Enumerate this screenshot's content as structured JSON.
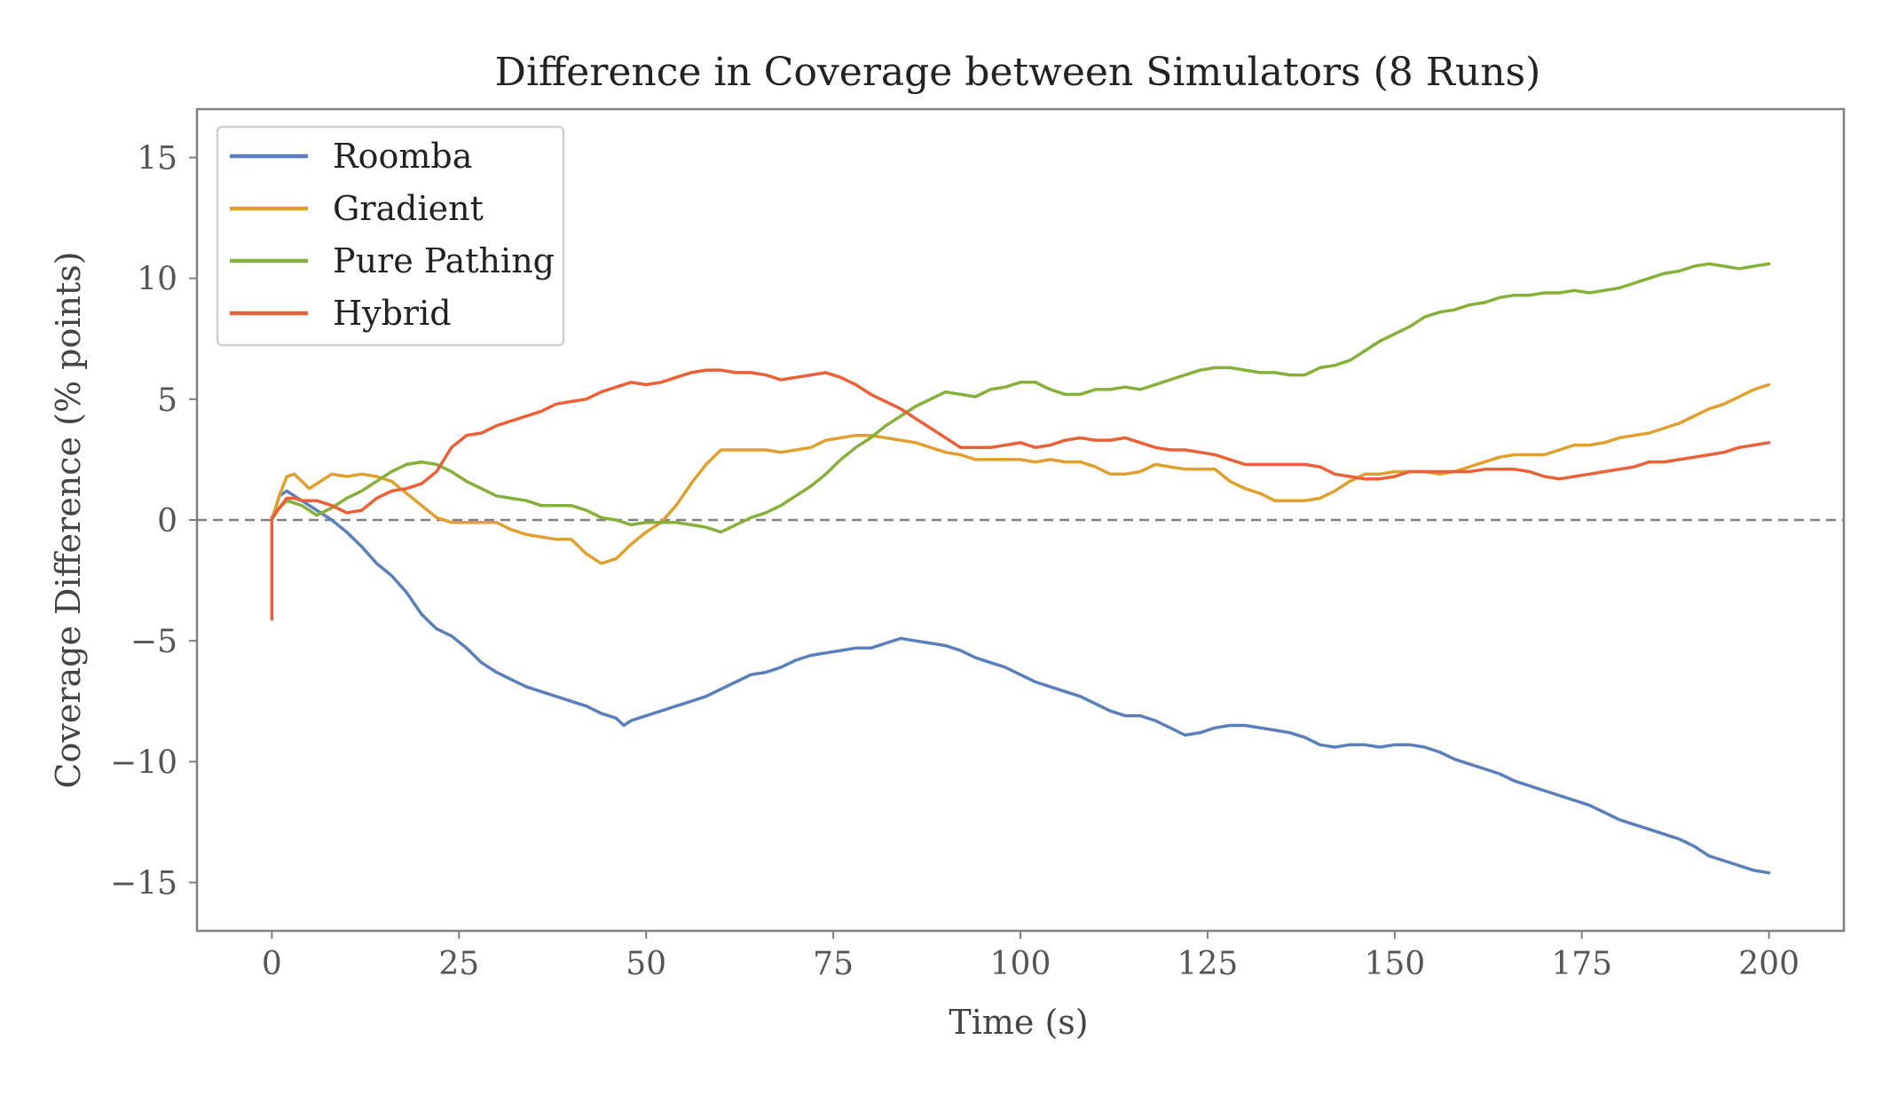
{
  "chart_data": {
    "type": "line",
    "title": "Difference in Coverage between Simulators (8 Runs)",
    "xlabel": "Time (s)",
    "ylabel": "Coverage Difference (% points)",
    "xlim": [
      -10,
      210
    ],
    "ylim": [
      -17,
      17
    ],
    "xticks": [
      0,
      25,
      50,
      75,
      100,
      125,
      150,
      175,
      200
    ],
    "xtick_labels": [
      "0",
      "25",
      "50",
      "75",
      "100",
      "125",
      "150",
      "175",
      "200"
    ],
    "yticks": [
      15,
      10,
      5,
      0,
      -5,
      -10,
      -15
    ],
    "ytick_labels": [
      "15",
      "10",
      "5",
      "0",
      "−5",
      "−10",
      "−15"
    ],
    "grid": false,
    "legend_position": "upper-left",
    "reference_line": {
      "y": 0,
      "style": "dashed",
      "color": "#808080"
    },
    "series": [
      {
        "name": "Roomba",
        "color": "#5b7fbb",
        "x": [
          0,
          1,
          2,
          4,
          6,
          8,
          10,
          12,
          14,
          16,
          18,
          20,
          22,
          24,
          26,
          28,
          30,
          32,
          34,
          36,
          38,
          40,
          42,
          44,
          46,
          47,
          48,
          50,
          52,
          54,
          56,
          58,
          60,
          62,
          64,
          66,
          68,
          70,
          72,
          74,
          76,
          78,
          80,
          82,
          84,
          86,
          88,
          90,
          92,
          94,
          96,
          98,
          100,
          102,
          104,
          106,
          108,
          110,
          112,
          114,
          116,
          118,
          120,
          122,
          124,
          126,
          128,
          130,
          132,
          134,
          136,
          138,
          140,
          142,
          144,
          146,
          148,
          150,
          152,
          154,
          156,
          158,
          160,
          162,
          164,
          166,
          168,
          170,
          172,
          174,
          176,
          178,
          180,
          182,
          184,
          186,
          188,
          190,
          192,
          194,
          196,
          198,
          200
        ],
        "y": [
          0,
          1.0,
          1.2,
          0.8,
          0.4,
          0.0,
          -0.5,
          -1.1,
          -1.8,
          -2.3,
          -3.0,
          -3.9,
          -4.5,
          -4.8,
          -5.3,
          -5.9,
          -6.3,
          -6.6,
          -6.9,
          -7.1,
          -7.3,
          -7.5,
          -7.7,
          -8.0,
          -8.2,
          -8.5,
          -8.3,
          -8.1,
          -7.9,
          -7.7,
          -7.5,
          -7.3,
          -7.0,
          -6.7,
          -6.4,
          -6.3,
          -6.1,
          -5.8,
          -5.6,
          -5.5,
          -5.4,
          -5.3,
          -5.3,
          -5.1,
          -4.9,
          -5.0,
          -5.1,
          -5.2,
          -5.4,
          -5.7,
          -5.9,
          -6.1,
          -6.4,
          -6.7,
          -6.9,
          -7.1,
          -7.3,
          -7.6,
          -7.9,
          -8.1,
          -8.1,
          -8.3,
          -8.6,
          -8.9,
          -8.8,
          -8.6,
          -8.5,
          -8.5,
          -8.6,
          -8.7,
          -8.8,
          -9.0,
          -9.3,
          -9.4,
          -9.3,
          -9.3,
          -9.4,
          -9.3,
          -9.3,
          -9.4,
          -9.6,
          -9.9,
          -10.1,
          -10.3,
          -10.5,
          -10.8,
          -11.0,
          -11.2,
          -11.4,
          -11.6,
          -11.8,
          -12.1,
          -12.4,
          -12.6,
          -12.8,
          -13.0,
          -13.2,
          -13.5,
          -13.9,
          -14.1,
          -14.3,
          -14.5,
          -14.6
        ]
      },
      {
        "name": "Gradient",
        "color": "#e1a02e",
        "x": [
          0,
          1,
          2,
          3,
          4,
          5,
          6,
          8,
          10,
          12,
          14,
          16,
          18,
          20,
          22,
          24,
          26,
          28,
          30,
          32,
          34,
          36,
          38,
          40,
          42,
          44,
          46,
          48,
          50,
          52,
          54,
          56,
          58,
          60,
          62,
          64,
          66,
          68,
          70,
          72,
          74,
          76,
          78,
          80,
          82,
          84,
          86,
          88,
          90,
          92,
          94,
          96,
          98,
          100,
          102,
          104,
          106,
          108,
          110,
          112,
          114,
          116,
          118,
          120,
          122,
          124,
          126,
          128,
          130,
          132,
          134,
          136,
          138,
          140,
          142,
          144,
          146,
          148,
          150,
          152,
          154,
          156,
          158,
          160,
          162,
          164,
          166,
          168,
          170,
          172,
          174,
          176,
          178,
          180,
          182,
          184,
          186,
          188,
          190,
          192,
          194,
          196,
          198,
          200
        ],
        "y": [
          0,
          1.0,
          1.8,
          1.9,
          1.6,
          1.3,
          1.5,
          1.9,
          1.8,
          1.9,
          1.8,
          1.6,
          1.1,
          0.6,
          0.1,
          -0.1,
          -0.1,
          -0.1,
          -0.1,
          -0.4,
          -0.6,
          -0.7,
          -0.8,
          -0.8,
          -1.4,
          -1.8,
          -1.6,
          -1.0,
          -0.5,
          -0.1,
          0.6,
          1.5,
          2.3,
          2.9,
          2.9,
          2.9,
          2.9,
          2.8,
          2.9,
          3.0,
          3.3,
          3.4,
          3.5,
          3.5,
          3.4,
          3.3,
          3.2,
          3.0,
          2.8,
          2.7,
          2.5,
          2.5,
          2.5,
          2.5,
          2.4,
          2.5,
          2.4,
          2.4,
          2.2,
          1.9,
          1.9,
          2.0,
          2.3,
          2.2,
          2.1,
          2.1,
          2.1,
          1.6,
          1.3,
          1.1,
          0.8,
          0.8,
          0.8,
          0.9,
          1.2,
          1.6,
          1.9,
          1.9,
          2.0,
          2.0,
          2.0,
          1.9,
          2.0,
          2.2,
          2.4,
          2.6,
          2.7,
          2.7,
          2.7,
          2.9,
          3.1,
          3.1,
          3.2,
          3.4,
          3.5,
          3.6,
          3.8,
          4.0,
          4.3,
          4.6,
          4.8,
          5.1,
          5.4,
          5.6
        ]
      },
      {
        "name": "Pure Pathing",
        "color": "#86b03a",
        "x": [
          0,
          1,
          2,
          4,
          6,
          8,
          10,
          12,
          14,
          16,
          18,
          20,
          22,
          24,
          26,
          28,
          30,
          32,
          34,
          36,
          38,
          40,
          42,
          44,
          46,
          48,
          50,
          52,
          54,
          56,
          58,
          60,
          62,
          64,
          66,
          68,
          70,
          72,
          74,
          76,
          78,
          80,
          82,
          84,
          86,
          88,
          90,
          92,
          94,
          96,
          98,
          100,
          102,
          104,
          106,
          108,
          110,
          112,
          114,
          116,
          118,
          120,
          122,
          124,
          126,
          128,
          130,
          132,
          134,
          136,
          138,
          140,
          142,
          144,
          146,
          148,
          150,
          152,
          154,
          156,
          158,
          160,
          162,
          164,
          166,
          168,
          170,
          172,
          174,
          176,
          178,
          180,
          182,
          184,
          186,
          188,
          190,
          192,
          194,
          196,
          198,
          200
        ],
        "y": [
          0,
          0.5,
          0.8,
          0.6,
          0.2,
          0.5,
          0.9,
          1.2,
          1.6,
          2.0,
          2.3,
          2.4,
          2.3,
          2.0,
          1.6,
          1.3,
          1.0,
          0.9,
          0.8,
          0.6,
          0.6,
          0.6,
          0.4,
          0.1,
          0.0,
          -0.2,
          -0.1,
          -0.1,
          -0.1,
          -0.2,
          -0.3,
          -0.5,
          -0.2,
          0.1,
          0.3,
          0.6,
          1.0,
          1.4,
          1.9,
          2.5,
          3.0,
          3.4,
          3.9,
          4.3,
          4.7,
          5.0,
          5.3,
          5.2,
          5.1,
          5.4,
          5.5,
          5.7,
          5.7,
          5.4,
          5.2,
          5.2,
          5.4,
          5.4,
          5.5,
          5.4,
          5.6,
          5.8,
          6.0,
          6.2,
          6.3,
          6.3,
          6.2,
          6.1,
          6.1,
          6.0,
          6.0,
          6.3,
          6.4,
          6.6,
          7.0,
          7.4,
          7.7,
          8.0,
          8.4,
          8.6,
          8.7,
          8.9,
          9.0,
          9.2,
          9.3,
          9.3,
          9.4,
          9.4,
          9.5,
          9.4,
          9.5,
          9.6,
          9.8,
          10.0,
          10.2,
          10.3,
          10.5,
          10.6,
          10.5,
          10.4,
          10.5,
          10.6
        ]
      },
      {
        "name": "Hybrid",
        "color": "#ea6139",
        "x": [
          0,
          0,
          1,
          2,
          3,
          4,
          6,
          8,
          10,
          12,
          14,
          16,
          18,
          20,
          22,
          24,
          26,
          28,
          30,
          32,
          34,
          36,
          38,
          40,
          42,
          44,
          46,
          48,
          50,
          52,
          54,
          56,
          58,
          60,
          62,
          64,
          66,
          68,
          70,
          72,
          74,
          76,
          78,
          80,
          82,
          84,
          86,
          88,
          90,
          92,
          94,
          96,
          98,
          100,
          102,
          104,
          106,
          108,
          110,
          112,
          114,
          116,
          118,
          120,
          122,
          124,
          126,
          128,
          130,
          132,
          134,
          136,
          138,
          140,
          142,
          144,
          146,
          148,
          150,
          152,
          154,
          156,
          158,
          160,
          162,
          164,
          166,
          168,
          170,
          172,
          174,
          176,
          178,
          180,
          182,
          184,
          186,
          188,
          190,
          192,
          194,
          196,
          198,
          200
        ],
        "y": [
          -4.1,
          0.1,
          0.5,
          0.9,
          0.9,
          0.8,
          0.8,
          0.6,
          0.3,
          0.4,
          0.9,
          1.2,
          1.3,
          1.5,
          2.0,
          3.0,
          3.5,
          3.6,
          3.9,
          4.1,
          4.3,
          4.5,
          4.8,
          4.9,
          5.0,
          5.3,
          5.5,
          5.7,
          5.6,
          5.7,
          5.9,
          6.1,
          6.2,
          6.2,
          6.1,
          6.1,
          6.0,
          5.8,
          5.9,
          6.0,
          6.1,
          5.9,
          5.6,
          5.2,
          4.9,
          4.6,
          4.2,
          3.8,
          3.4,
          3.0,
          3.0,
          3.0,
          3.1,
          3.2,
          3.0,
          3.1,
          3.3,
          3.4,
          3.3,
          3.3,
          3.4,
          3.2,
          3.0,
          2.9,
          2.9,
          2.8,
          2.7,
          2.5,
          2.3,
          2.3,
          2.3,
          2.3,
          2.3,
          2.2,
          1.9,
          1.8,
          1.7,
          1.7,
          1.8,
          2.0,
          2.0,
          2.0,
          2.0,
          2.0,
          2.1,
          2.1,
          2.1,
          2.0,
          1.8,
          1.7,
          1.8,
          1.9,
          2.0,
          2.1,
          2.2,
          2.4,
          2.4,
          2.5,
          2.6,
          2.7,
          2.8,
          3.0,
          3.1,
          3.2
        ]
      }
    ]
  }
}
